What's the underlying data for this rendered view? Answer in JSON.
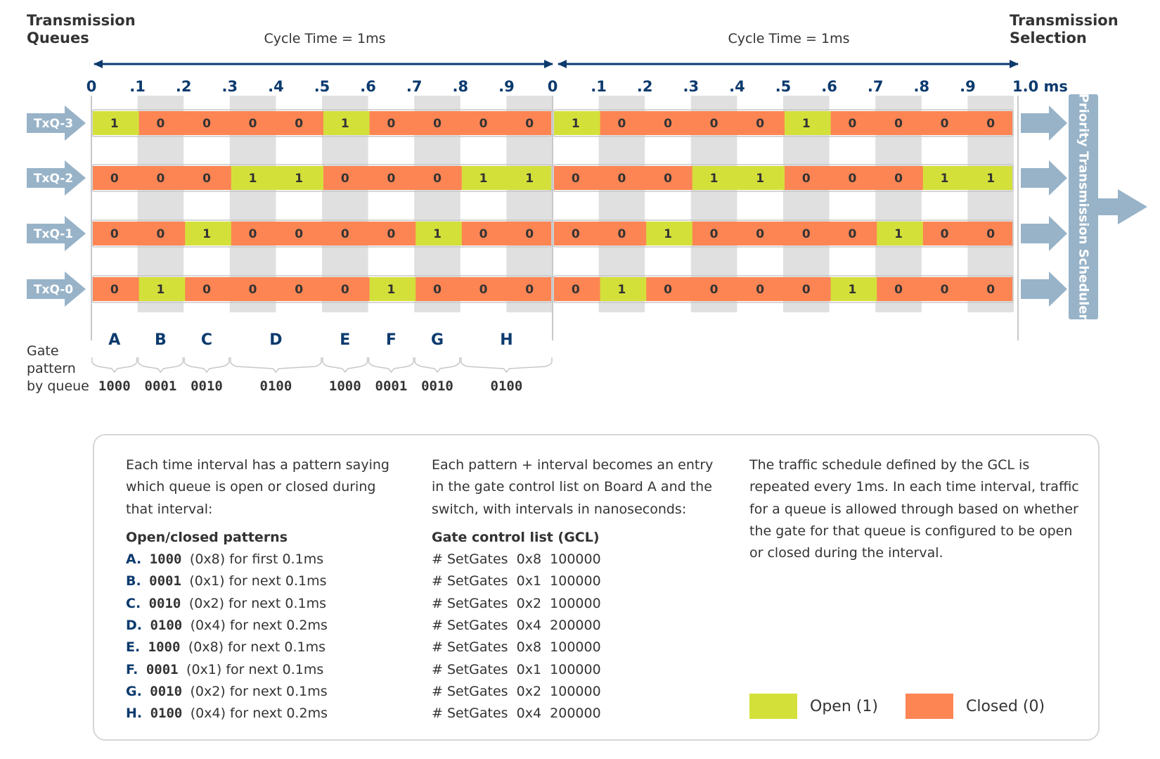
{
  "header": {
    "left_title": [
      "Transmission",
      "Queues"
    ],
    "right_title": [
      "Transmission",
      "Selection"
    ],
    "cycles": [
      "Cycle Time = 1ms",
      "Cycle Time = 1ms"
    ]
  },
  "axis": {
    "ticks": [
      "0",
      ".1",
      ".2",
      ".3",
      ".4",
      ".5",
      ".6",
      ".7",
      ".8",
      ".9",
      "0",
      ".1",
      ".2",
      ".3",
      ".4",
      ".5",
      ".6",
      ".7",
      ".8",
      ".9",
      "1.0 ms"
    ]
  },
  "queues": [
    {
      "label": "TxQ-3",
      "bits": [
        1,
        0,
        0,
        0,
        0,
        1,
        0,
        0,
        0,
        0
      ]
    },
    {
      "label": "TxQ-2",
      "bits": [
        0,
        0,
        0,
        1,
        1,
        0,
        0,
        0,
        1,
        1
      ]
    },
    {
      "label": "TxQ-1",
      "bits": [
        0,
        0,
        1,
        0,
        0,
        0,
        0,
        1,
        0,
        0
      ]
    },
    {
      "label": "TxQ-0",
      "bits": [
        0,
        1,
        0,
        0,
        0,
        0,
        1,
        0,
        0,
        0
      ]
    }
  ],
  "scheduler_label": "Priority Transmission Scheduler",
  "gate_pattern": {
    "label": [
      "Gate",
      "pattern",
      "by queue"
    ],
    "intervals": [
      {
        "letter": "A",
        "code": "1000",
        "start": 0,
        "end": 1
      },
      {
        "letter": "B",
        "code": "0001",
        "start": 1,
        "end": 2
      },
      {
        "letter": "C",
        "code": "0010",
        "start": 2,
        "end": 3
      },
      {
        "letter": "D",
        "code": "0100",
        "start": 3,
        "end": 5
      },
      {
        "letter": "E",
        "code": "1000",
        "start": 5,
        "end": 6
      },
      {
        "letter": "F",
        "code": "0001",
        "start": 6,
        "end": 7
      },
      {
        "letter": "G",
        "code": "0010",
        "start": 7,
        "end": 8
      },
      {
        "letter": "H",
        "code": "0100",
        "start": 8,
        "end": 10
      }
    ]
  },
  "colors": {
    "open": "#d4e03a",
    "closed": "#fd8554",
    "navy": "#0b3a6e",
    "arrow": "#98b3c8",
    "stripe": "#e0e0e0"
  },
  "panel": {
    "col1": {
      "intro": "Each time interval has a pattern saying which queue is open or closed during that interval:",
      "heading": "Open/closed patterns",
      "items": [
        {
          "letter": "A.",
          "code": "1000",
          "text": "(0x8) for first 0.1ms"
        },
        {
          "letter": "B.",
          "code": "0001",
          "text": "(0x1) for next 0.1ms"
        },
        {
          "letter": "C.",
          "code": "0010",
          "text": "(0x2) for next 0.1ms"
        },
        {
          "letter": "D.",
          "code": "0100",
          "text": "(0x4) for next 0.2ms"
        },
        {
          "letter": "E.",
          "code": "1000",
          "text": "(0x8) for next 0.1ms"
        },
        {
          "letter": "F.",
          "code": "0001",
          "text": "(0x1) for next 0.1ms"
        },
        {
          "letter": "G.",
          "code": "0010",
          "text": "(0x2) for next 0.1ms"
        },
        {
          "letter": "H.",
          "code": "0100",
          "text": "(0x4) for next 0.2ms"
        }
      ]
    },
    "col2": {
      "intro": "Each pattern + interval becomes an entry in the gate control list on Board A and the switch, with intervals in nanoseconds:",
      "heading": "Gate control list (GCL)",
      "items": [
        "# SetGates  0x8  100000",
        "# SetGates  0x1  100000",
        "# SetGates  0x2  100000",
        "# SetGates  0x4  200000",
        "# SetGates  0x8  100000",
        "# SetGates  0x1  100000",
        "# SetGates  0x2  100000",
        "# SetGates  0x4  200000"
      ]
    },
    "col3": {
      "text": "The traffic schedule defined by the GCL is repeated every 1ms. In each time interval, traffic for a queue is allowed through based on whether the gate for that queue is configured to be open or closed during the interval."
    },
    "legend": {
      "open_label": "Open (1)",
      "closed_label": "Closed (0)"
    }
  }
}
